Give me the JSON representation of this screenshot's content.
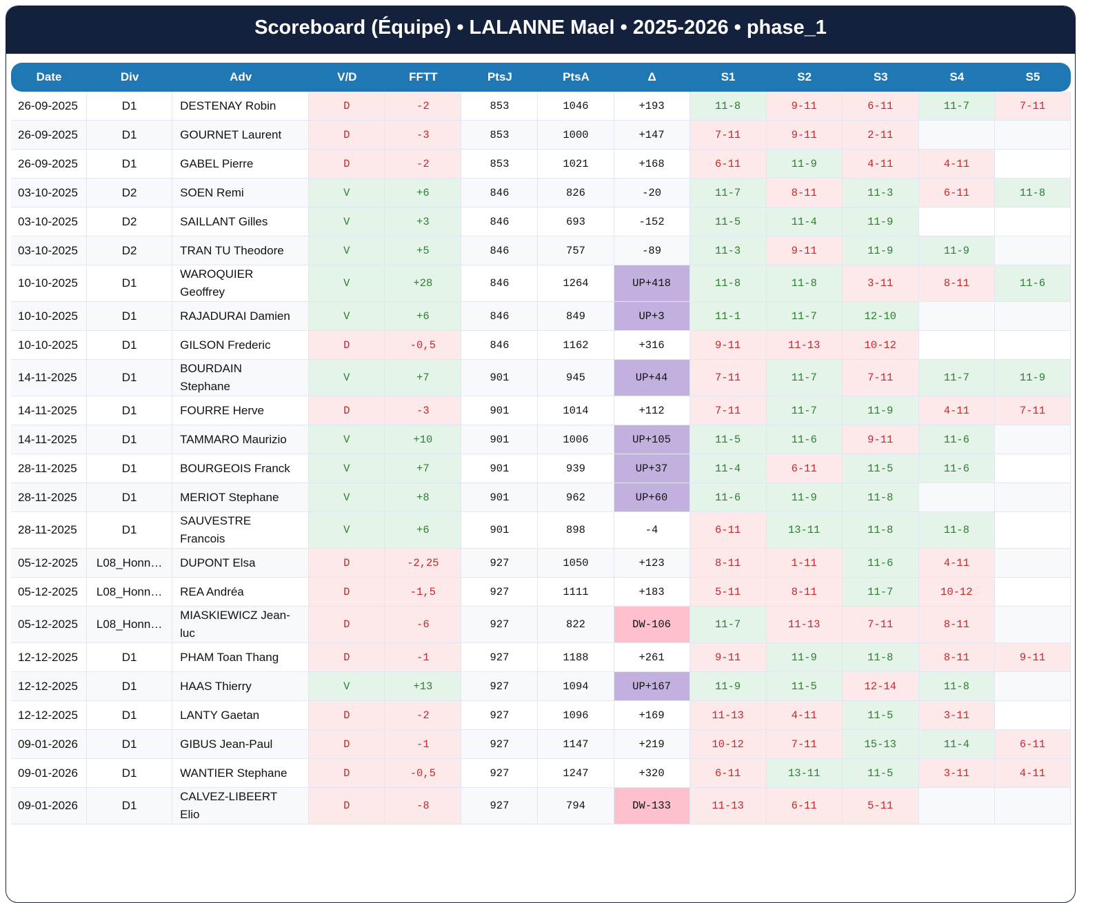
{
  "header": {
    "title": "Scoreboard (Équipe) • LALANNE Mael • 2025-2026 • phase_1"
  },
  "table": {
    "columns": [
      "Date",
      "Div",
      "Adv",
      "V/D",
      "FFTT",
      "PtsJ",
      "PtsA",
      "Δ",
      "S1",
      "S2",
      "S3",
      "S4",
      "S5"
    ],
    "rows": [
      [
        "26-09-2025",
        "D1",
        "DESTENAY Robin",
        "D",
        "-2",
        "853",
        "1046",
        "+193",
        "11-8",
        "9-11",
        "6-11",
        "11-7",
        "7-11"
      ],
      [
        "26-09-2025",
        "D1",
        "GOURNET Laurent",
        "D",
        "-3",
        "853",
        "1000",
        "+147",
        "7-11",
        "9-11",
        "2-11",
        "",
        ""
      ],
      [
        "26-09-2025",
        "D1",
        "GABEL Pierre",
        "D",
        "-2",
        "853",
        "1021",
        "+168",
        "6-11",
        "11-9",
        "4-11",
        "4-11",
        ""
      ],
      [
        "03-10-2025",
        "D2",
        "SOEN Remi",
        "V",
        "+6",
        "846",
        "826",
        "-20",
        "11-7",
        "8-11",
        "11-3",
        "6-11",
        "11-8"
      ],
      [
        "03-10-2025",
        "D2",
        "SAILLANT Gilles",
        "V",
        "+3",
        "846",
        "693",
        "-152",
        "11-5",
        "11-4",
        "11-9",
        "",
        ""
      ],
      [
        "03-10-2025",
        "D2",
        "TRAN TU Theodore",
        "V",
        "+5",
        "846",
        "757",
        "-89",
        "11-3",
        "9-11",
        "11-9",
        "11-9",
        ""
      ],
      [
        "10-10-2025",
        "D1",
        "WAROQUIER Geoffrey",
        "V",
        "+28",
        "846",
        "1264",
        "UP+418",
        "11-8",
        "11-8",
        "3-11",
        "8-11",
        "11-6"
      ],
      [
        "10-10-2025",
        "D1",
        "RAJADURAI Damien",
        "V",
        "+6",
        "846",
        "849",
        "UP+3",
        "11-1",
        "11-7",
        "12-10",
        "",
        ""
      ],
      [
        "10-10-2025",
        "D1",
        "GILSON Frederic",
        "D",
        "-0,5",
        "846",
        "1162",
        "+316",
        "9-11",
        "11-13",
        "10-12",
        "",
        ""
      ],
      [
        "14-11-2025",
        "D1",
        "BOURDAIN Stephane",
        "V",
        "+7",
        "901",
        "945",
        "UP+44",
        "7-11",
        "11-7",
        "7-11",
        "11-7",
        "11-9"
      ],
      [
        "14-11-2025",
        "D1",
        "FOURRE Herve",
        "D",
        "-3",
        "901",
        "1014",
        "+112",
        "7-11",
        "11-7",
        "11-9",
        "4-11",
        "7-11"
      ],
      [
        "14-11-2025",
        "D1",
        "TAMMARO Maurizio",
        "V",
        "+10",
        "901",
        "1006",
        "UP+105",
        "11-5",
        "11-6",
        "9-11",
        "11-6",
        ""
      ],
      [
        "28-11-2025",
        "D1",
        "BOURGEOIS Franck",
        "V",
        "+7",
        "901",
        "939",
        "UP+37",
        "11-4",
        "6-11",
        "11-5",
        "11-6",
        ""
      ],
      [
        "28-11-2025",
        "D1",
        "MERIOT Stephane",
        "V",
        "+8",
        "901",
        "962",
        "UP+60",
        "11-6",
        "11-9",
        "11-8",
        "",
        ""
      ],
      [
        "28-11-2025",
        "D1",
        "SAUVESTRE Francois",
        "V",
        "+6",
        "901",
        "898",
        "-4",
        "6-11",
        "13-11",
        "11-8",
        "11-8",
        ""
      ],
      [
        "05-12-2025",
        "L08_Honn…",
        "DUPONT Elsa",
        "D",
        "-2,25",
        "927",
        "1050",
        "+123",
        "8-11",
        "1-11",
        "11-6",
        "4-11",
        ""
      ],
      [
        "05-12-2025",
        "L08_Honn…",
        "REA Andréa",
        "D",
        "-1,5",
        "927",
        "1111",
        "+183",
        "5-11",
        "8-11",
        "11-7",
        "10-12",
        ""
      ],
      [
        "05-12-2025",
        "L08_Honn…",
        "MIASKIEWICZ Jean-luc",
        "D",
        "-6",
        "927",
        "822",
        "DW-106",
        "11-7",
        "11-13",
        "7-11",
        "8-11",
        ""
      ],
      [
        "12-12-2025",
        "D1",
        "PHAM Toan Thang",
        "D",
        "-1",
        "927",
        "1188",
        "+261",
        "9-11",
        "11-9",
        "11-8",
        "8-11",
        "9-11"
      ],
      [
        "12-12-2025",
        "D1",
        "HAAS Thierry",
        "V",
        "+13",
        "927",
        "1094",
        "UP+167",
        "11-9",
        "11-5",
        "12-14",
        "11-8",
        ""
      ],
      [
        "12-12-2025",
        "D1",
        "LANTY Gaetan",
        "D",
        "-2",
        "927",
        "1096",
        "+169",
        "11-13",
        "4-11",
        "11-5",
        "3-11",
        ""
      ],
      [
        "09-01-2026",
        "D1",
        "GIBUS Jean-Paul",
        "D",
        "-1",
        "927",
        "1147",
        "+219",
        "10-12",
        "7-11",
        "15-13",
        "11-4",
        "6-11"
      ],
      [
        "09-01-2026",
        "D1",
        "WANTIER Stephane",
        "D",
        "-0,5",
        "927",
        "1247",
        "+320",
        "6-11",
        "13-11",
        "11-5",
        "3-11",
        "4-11"
      ],
      [
        "09-01-2026",
        "D1",
        "CALVEZ-LIBEERT Elio",
        "D",
        "-8",
        "927",
        "794",
        "DW-133",
        "11-13",
        "6-11",
        "5-11",
        "",
        ""
      ]
    ]
  }
}
